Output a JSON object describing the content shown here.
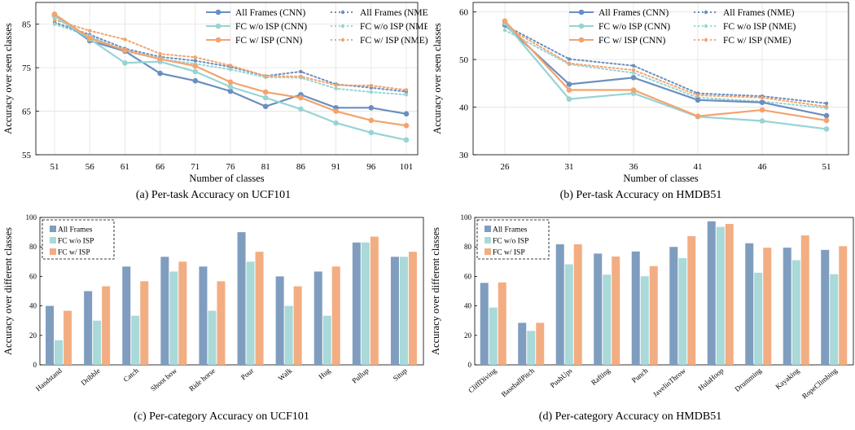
{
  "chart_data": [
    {
      "id": "a",
      "type": "line",
      "caption": "(a) Per-task  Accuracy on UCF101",
      "xlabel": "Number of classes",
      "ylabel": "Accuracy over seen classes",
      "x": [
        51,
        56,
        61,
        66,
        71,
        76,
        81,
        86,
        91,
        96,
        101
      ],
      "ylim": [
        55,
        90
      ],
      "yticks": [
        55,
        65,
        75,
        85
      ],
      "grid": true,
      "legend": "top-right, two columns",
      "series": [
        {
          "name": "All Frames (CNN)",
          "color": "#6a8fbf",
          "dashed": false,
          "values": [
            87,
            81.2,
            78.8,
            73.7,
            72,
            69.6,
            66.1,
            68.8,
            65.8,
            65.8,
            64.4
          ]
        },
        {
          "name": "FC w/o ISP (CNN)",
          "color": "#97d4d4",
          "dashed": false,
          "values": [
            86.8,
            81.6,
            76.1,
            76.4,
            74.1,
            70.6,
            68.1,
            65.5,
            62.3,
            60.1,
            58.4
          ]
        },
        {
          "name": "FC w/ ISP (CNN)",
          "color": "#f3a36d",
          "dashed": false,
          "values": [
            87.3,
            81.8,
            79,
            77,
            75.4,
            71.7,
            69.4,
            68.1,
            65,
            62.9,
            61.7
          ]
        },
        {
          "name": "All Frames (NME)",
          "color": "#6a8fbf",
          "dashed": true,
          "values": [
            85.4,
            82.6,
            79.4,
            77.5,
            76.6,
            75.2,
            73.1,
            74.1,
            71.2,
            70.4,
            69.5
          ]
        },
        {
          "name": "FC w/o ISP (NME)",
          "color": "#97d4d4",
          "dashed": true,
          "values": [
            85,
            82.3,
            78.8,
            77,
            75.9,
            74.6,
            72.8,
            72.7,
            70.2,
            69.4,
            68.8
          ]
        },
        {
          "name": "FC w/ ISP (NME)",
          "color": "#f3a36d",
          "dashed": true,
          "values": [
            86,
            83.5,
            81.5,
            78.2,
            77.4,
            75.5,
            73.1,
            73,
            71,
            70.9,
            69.9
          ]
        }
      ]
    },
    {
      "id": "b",
      "type": "line",
      "caption": "(b) Per-task  Accuracy on HMDB51",
      "xlabel": "Number of classes",
      "ylabel": "Accuracy over seen classes",
      "x": [
        26,
        31,
        36,
        41,
        46,
        51
      ],
      "ylim": [
        30,
        62
      ],
      "yticks": [
        30,
        40,
        50,
        60
      ],
      "grid": true,
      "legend": "top-right, two columns",
      "series": [
        {
          "name": "All Frames (CNN)",
          "color": "#6a8fbf",
          "dashed": false,
          "values": [
            57.3,
            44.8,
            46.2,
            41.5,
            41,
            38.2
          ]
        },
        {
          "name": "FC w/o ISP (CNN)",
          "color": "#97d4d4",
          "dashed": false,
          "values": [
            57.7,
            41.7,
            42.9,
            38,
            37.1,
            35.4
          ]
        },
        {
          "name": "FC w/ ISP (CNN)",
          "color": "#f3a36d",
          "dashed": false,
          "values": [
            58.1,
            43.6,
            43.6,
            38.1,
            39.4,
            37.2
          ]
        },
        {
          "name": "All Frames (NME)",
          "color": "#6a8fbf",
          "dashed": true,
          "values": [
            57.2,
            50.1,
            48.7,
            42.9,
            42.3,
            40.8
          ]
        },
        {
          "name": "FC w/o ISP (NME)",
          "color": "#97d4d4",
          "dashed": true,
          "values": [
            56.2,
            49,
            47.2,
            42,
            41.2,
            39.8
          ]
        },
        {
          "name": "FC w/ ISP (NME)",
          "color": "#f3a36d",
          "dashed": true,
          "values": [
            57,
            49.2,
            47.8,
            42.5,
            42,
            40.1
          ]
        }
      ]
    },
    {
      "id": "c",
      "type": "bar",
      "caption": "(c) Per-category  Accuracy on UCF101",
      "xlabel": "",
      "ylabel": "Accuracy over different classes",
      "categories": [
        "Handstand",
        "Dribble",
        "Catch",
        "Shoot bow",
        "Ride horse",
        "Pour",
        "Walk",
        "Hug",
        "Pullup",
        "Situp"
      ],
      "ylim": [
        0,
        100
      ],
      "yticks": [
        0,
        20,
        40,
        60,
        80,
        100
      ],
      "grid": false,
      "legend": "top-left, dashed box",
      "series": [
        {
          "name": "All Frames",
          "color": "#7f9dbf",
          "values": [
            40,
            50,
            66.7,
            73.3,
            66.7,
            90,
            60,
            63.3,
            83,
            73.3
          ]
        },
        {
          "name": "FC w/o ISP",
          "color": "#a9d9d9",
          "values": [
            16.7,
            30,
            33.3,
            63.3,
            36.7,
            70,
            40,
            33.3,
            83,
            73.3
          ]
        },
        {
          "name": "FC w/ ISP",
          "color": "#f3ad82",
          "values": [
            36.7,
            53.3,
            56.7,
            70,
            56.7,
            76.7,
            53.3,
            66.7,
            87,
            76.7
          ]
        }
      ]
    },
    {
      "id": "d",
      "type": "bar",
      "caption": "(d) Per-category  Accuracy on HMDB51",
      "xlabel": "",
      "ylabel": "Accuracy over different classes",
      "categories": [
        "CliffDiving",
        "BaseballPitch",
        "PushUps",
        "Rafting",
        "Punch",
        "JavelinThrow",
        "HulaHoop",
        "Drumming",
        "Kayaking",
        "RopeClimbing"
      ],
      "ylim": [
        0,
        100
      ],
      "yticks": [
        0,
        20,
        40,
        60,
        80,
        100
      ],
      "grid": false,
      "legend": "top-left, dashed box",
      "series": [
        {
          "name": "All Frames",
          "color": "#7f9dbf",
          "values": [
            55.6,
            28.5,
            81.8,
            75.5,
            76.9,
            80,
            97.4,
            82.5,
            79.5,
            78
          ]
        },
        {
          "name": "FC w/o ISP",
          "color": "#a9d9d9",
          "values": [
            38.9,
            23,
            68.2,
            61.2,
            60.1,
            72.4,
            93.6,
            62.5,
            71,
            61.5
          ]
        },
        {
          "name": "FC w/ ISP",
          "color": "#f3ad82",
          "values": [
            55.9,
            28.5,
            81.8,
            73.5,
            67,
            87.3,
            95.6,
            79.5,
            87.8,
            80.5
          ]
        }
      ]
    }
  ]
}
